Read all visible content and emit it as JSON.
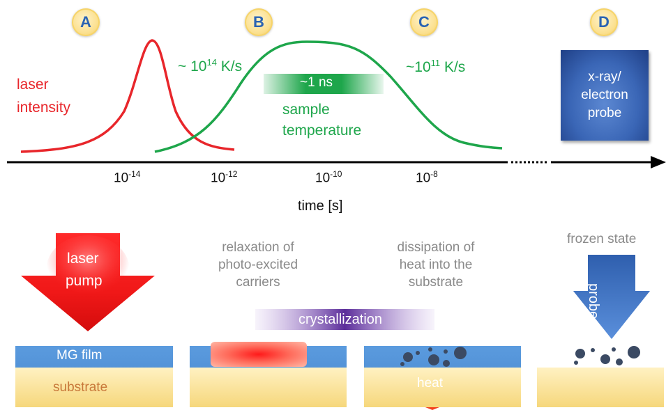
{
  "badges": [
    "A",
    "B",
    "C",
    "D"
  ],
  "curves": {
    "laser_label_line1": "laser",
    "laser_label_line2": "intensity",
    "temp_label_line1": "sample",
    "temp_label_line2": "temperature",
    "duration": "~1 ns",
    "rate1_prefix": "~ 10",
    "rate1_exp": "14",
    "rate1_unit": " K/s",
    "rate2_prefix": "~10",
    "rate2_exp": "11",
    "rate2_unit": " K/s",
    "laser_color": "#e8262b",
    "temp_color": "#1ea64b"
  },
  "axis": {
    "label": "time [s]",
    "ticks": [
      {
        "base": "10",
        "exp": "-14"
      },
      {
        "base": "10",
        "exp": "-12"
      },
      {
        "base": "10",
        "exp": "-10"
      },
      {
        "base": "10",
        "exp": "-8"
      }
    ]
  },
  "probe_box": {
    "line1": "x-ray/",
    "line2": "electron",
    "line3": "probe"
  },
  "stages": {
    "pump_line1": "laser",
    "pump_line2": "pump",
    "film_label": "MG film",
    "substrate_label": "substrate",
    "relax_line1": "relaxation of",
    "relax_line2": "photo-excited",
    "relax_line3": "carriers",
    "diss_line1": "dissipation of",
    "diss_line2": "heat into the",
    "diss_line3": "substrate",
    "crystallization": "crystallization",
    "heat": "heat",
    "frozen": "frozen state",
    "probe_arrow": "probe"
  }
}
